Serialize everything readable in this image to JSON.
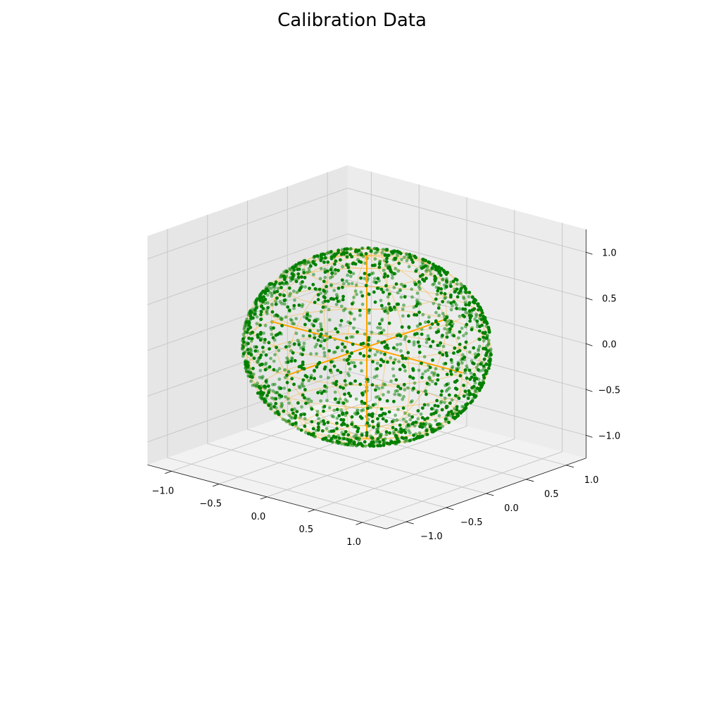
{
  "chart_data": {
    "type": "scatter",
    "title": "Calibration Data",
    "projection": "3d",
    "grid": true,
    "xlim": [
      -1.25,
      1.25
    ],
    "ylim": [
      -1.25,
      1.25
    ],
    "zlim": [
      -1.25,
      1.25
    ],
    "x_ticks": [
      -1.0,
      -0.5,
      0.0,
      0.5,
      1.0
    ],
    "y_ticks": [
      -1.0,
      -0.5,
      0.0,
      0.5,
      1.0
    ],
    "z_ticks": [
      -1.0,
      -0.5,
      0.0,
      0.5,
      1.0
    ],
    "x_tick_labels": [
      "−1.0",
      "−0.5",
      "0.0",
      "0.5",
      "1.0"
    ],
    "y_tick_labels": [
      "−1.0",
      "−0.5",
      "0.0",
      "0.5",
      "1.0"
    ],
    "z_tick_labels": [
      "−1.0",
      "−0.5",
      "0.0",
      "0.5",
      "1.0"
    ],
    "point_color": "#008000",
    "point_count": 2000,
    "point_distribution": "uniform on unit sphere surface (radius 1.0)",
    "sphere": {
      "radius": 1.0,
      "center": [
        0,
        0,
        0
      ],
      "color": "#ffa500",
      "style": "wireframe"
    },
    "axis_lines": {
      "color": "#ffa500",
      "extent": [
        -1.0,
        1.0
      ]
    }
  }
}
